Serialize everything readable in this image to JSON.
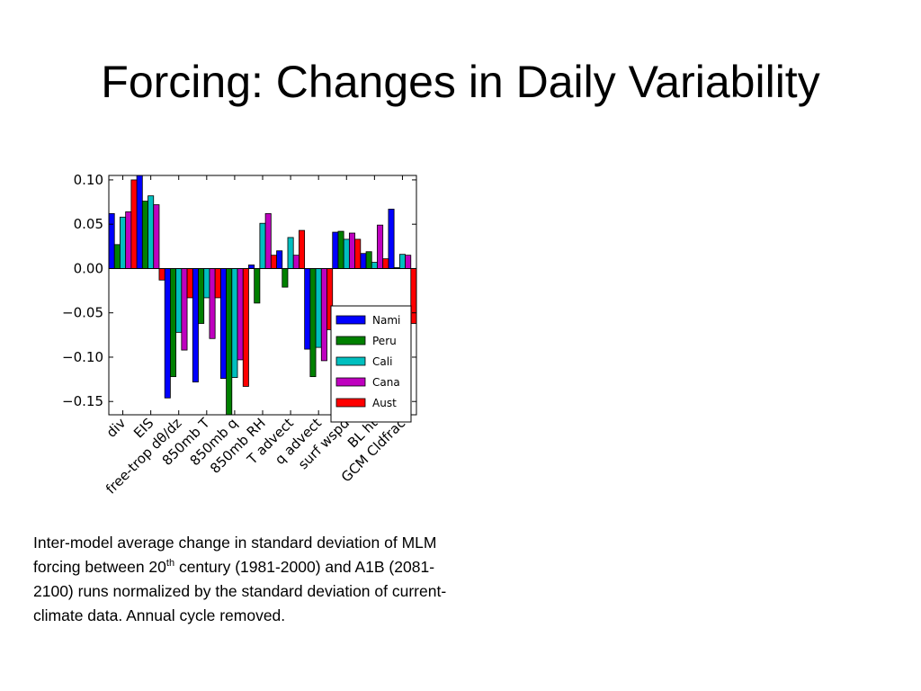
{
  "title": "Forcing: Changes in Daily Variability",
  "caption": {
    "part1": "Inter-model average change in standard deviation of MLM forcing between 20",
    "sup": "th",
    "part2": " century (1981-2000) and A1B (2081-2100) runs normalized by the standard deviation of current-climate data. Annual cycle removed."
  },
  "chart_data": {
    "type": "bar",
    "title": "",
    "xlabel": "",
    "ylabel": "",
    "ylim": [
      -0.165,
      0.105
    ],
    "yticks": [
      0.1,
      0.05,
      0.0,
      -0.05,
      -0.1,
      -0.15
    ],
    "ytick_labels": [
      "0.10",
      "0.05",
      "0.00",
      "−0.05",
      "−0.10",
      "−0.15"
    ],
    "categories": [
      "div",
      "EIS",
      "free-trop dθ/dz",
      "850mb T",
      "850mb q",
      "850mb RH",
      "T advect",
      "q advect",
      "surf wspd",
      "BL ht",
      "GCM Cldfrac"
    ],
    "legend_position": "right",
    "series": [
      {
        "name": "Nami",
        "color": "#0000ff",
        "values": [
          0.062,
          0.106,
          -0.146,
          -0.128,
          -0.124,
          0.004,
          0.02,
          -0.091,
          0.041,
          0.017,
          0.067
        ]
      },
      {
        "name": "Peru",
        "color": "#008000",
        "values": [
          0.027,
          0.076,
          -0.122,
          -0.062,
          -0.168,
          -0.039,
          -0.021,
          -0.122,
          0.042,
          0.019,
          0.001
        ]
      },
      {
        "name": "Cali",
        "color": "#00bfbf",
        "values": [
          0.058,
          0.082,
          -0.072,
          -0.033,
          -0.123,
          0.051,
          0.035,
          -0.089,
          0.033,
          0.007,
          0.016
        ]
      },
      {
        "name": "Cana",
        "color": "#bf00bf",
        "values": [
          0.064,
          0.072,
          -0.092,
          -0.079,
          -0.103,
          0.062,
          0.015,
          -0.104,
          0.04,
          0.049,
          0.015
        ]
      },
      {
        "name": "Aust",
        "color": "#ff0000",
        "values": [
          0.1,
          -0.013,
          -0.033,
          -0.033,
          -0.133,
          0.015,
          0.043,
          -0.069,
          0.033,
          0.011,
          -0.062
        ]
      }
    ]
  }
}
